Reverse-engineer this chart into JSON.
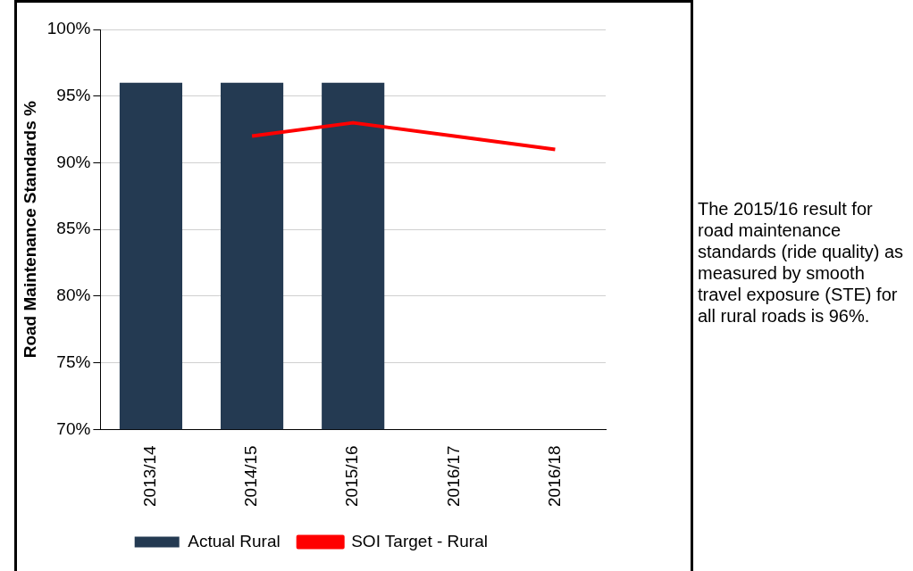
{
  "chart_data": {
    "type": "bar",
    "ylabel": "Road Maintenance Standards %",
    "categories": [
      "2013/14",
      "2014/15",
      "2015/16",
      "2016/17",
      "2016/18"
    ],
    "series": [
      {
        "name": "Actual Rural",
        "color": "#243a52",
        "values": [
          96,
          96,
          96,
          null,
          null
        ]
      },
      {
        "name": "SOI Target - Rural",
        "type": "line",
        "color": "#ff0000",
        "values": [
          null,
          92,
          93,
          92,
          91
        ]
      }
    ],
    "ylim": [
      70,
      100
    ],
    "yticks": [
      {
        "value": 70,
        "label": "70%"
      },
      {
        "value": 75,
        "label": "75%"
      },
      {
        "value": 80,
        "label": "80%"
      },
      {
        "value": 85,
        "label": "85%"
      },
      {
        "value": 90,
        "label": "90%"
      },
      {
        "value": 95,
        "label": "95%"
      },
      {
        "value": 100,
        "label": "100%"
      }
    ],
    "grid": "y",
    "legend": "bottom",
    "marker": "none",
    "line_style": "solid",
    "annotations": [
      "The 2015/16 result for road maintenance standards (ride quality) as measured by smooth travel exposure (STE) for all rural roads is 96%."
    ]
  }
}
